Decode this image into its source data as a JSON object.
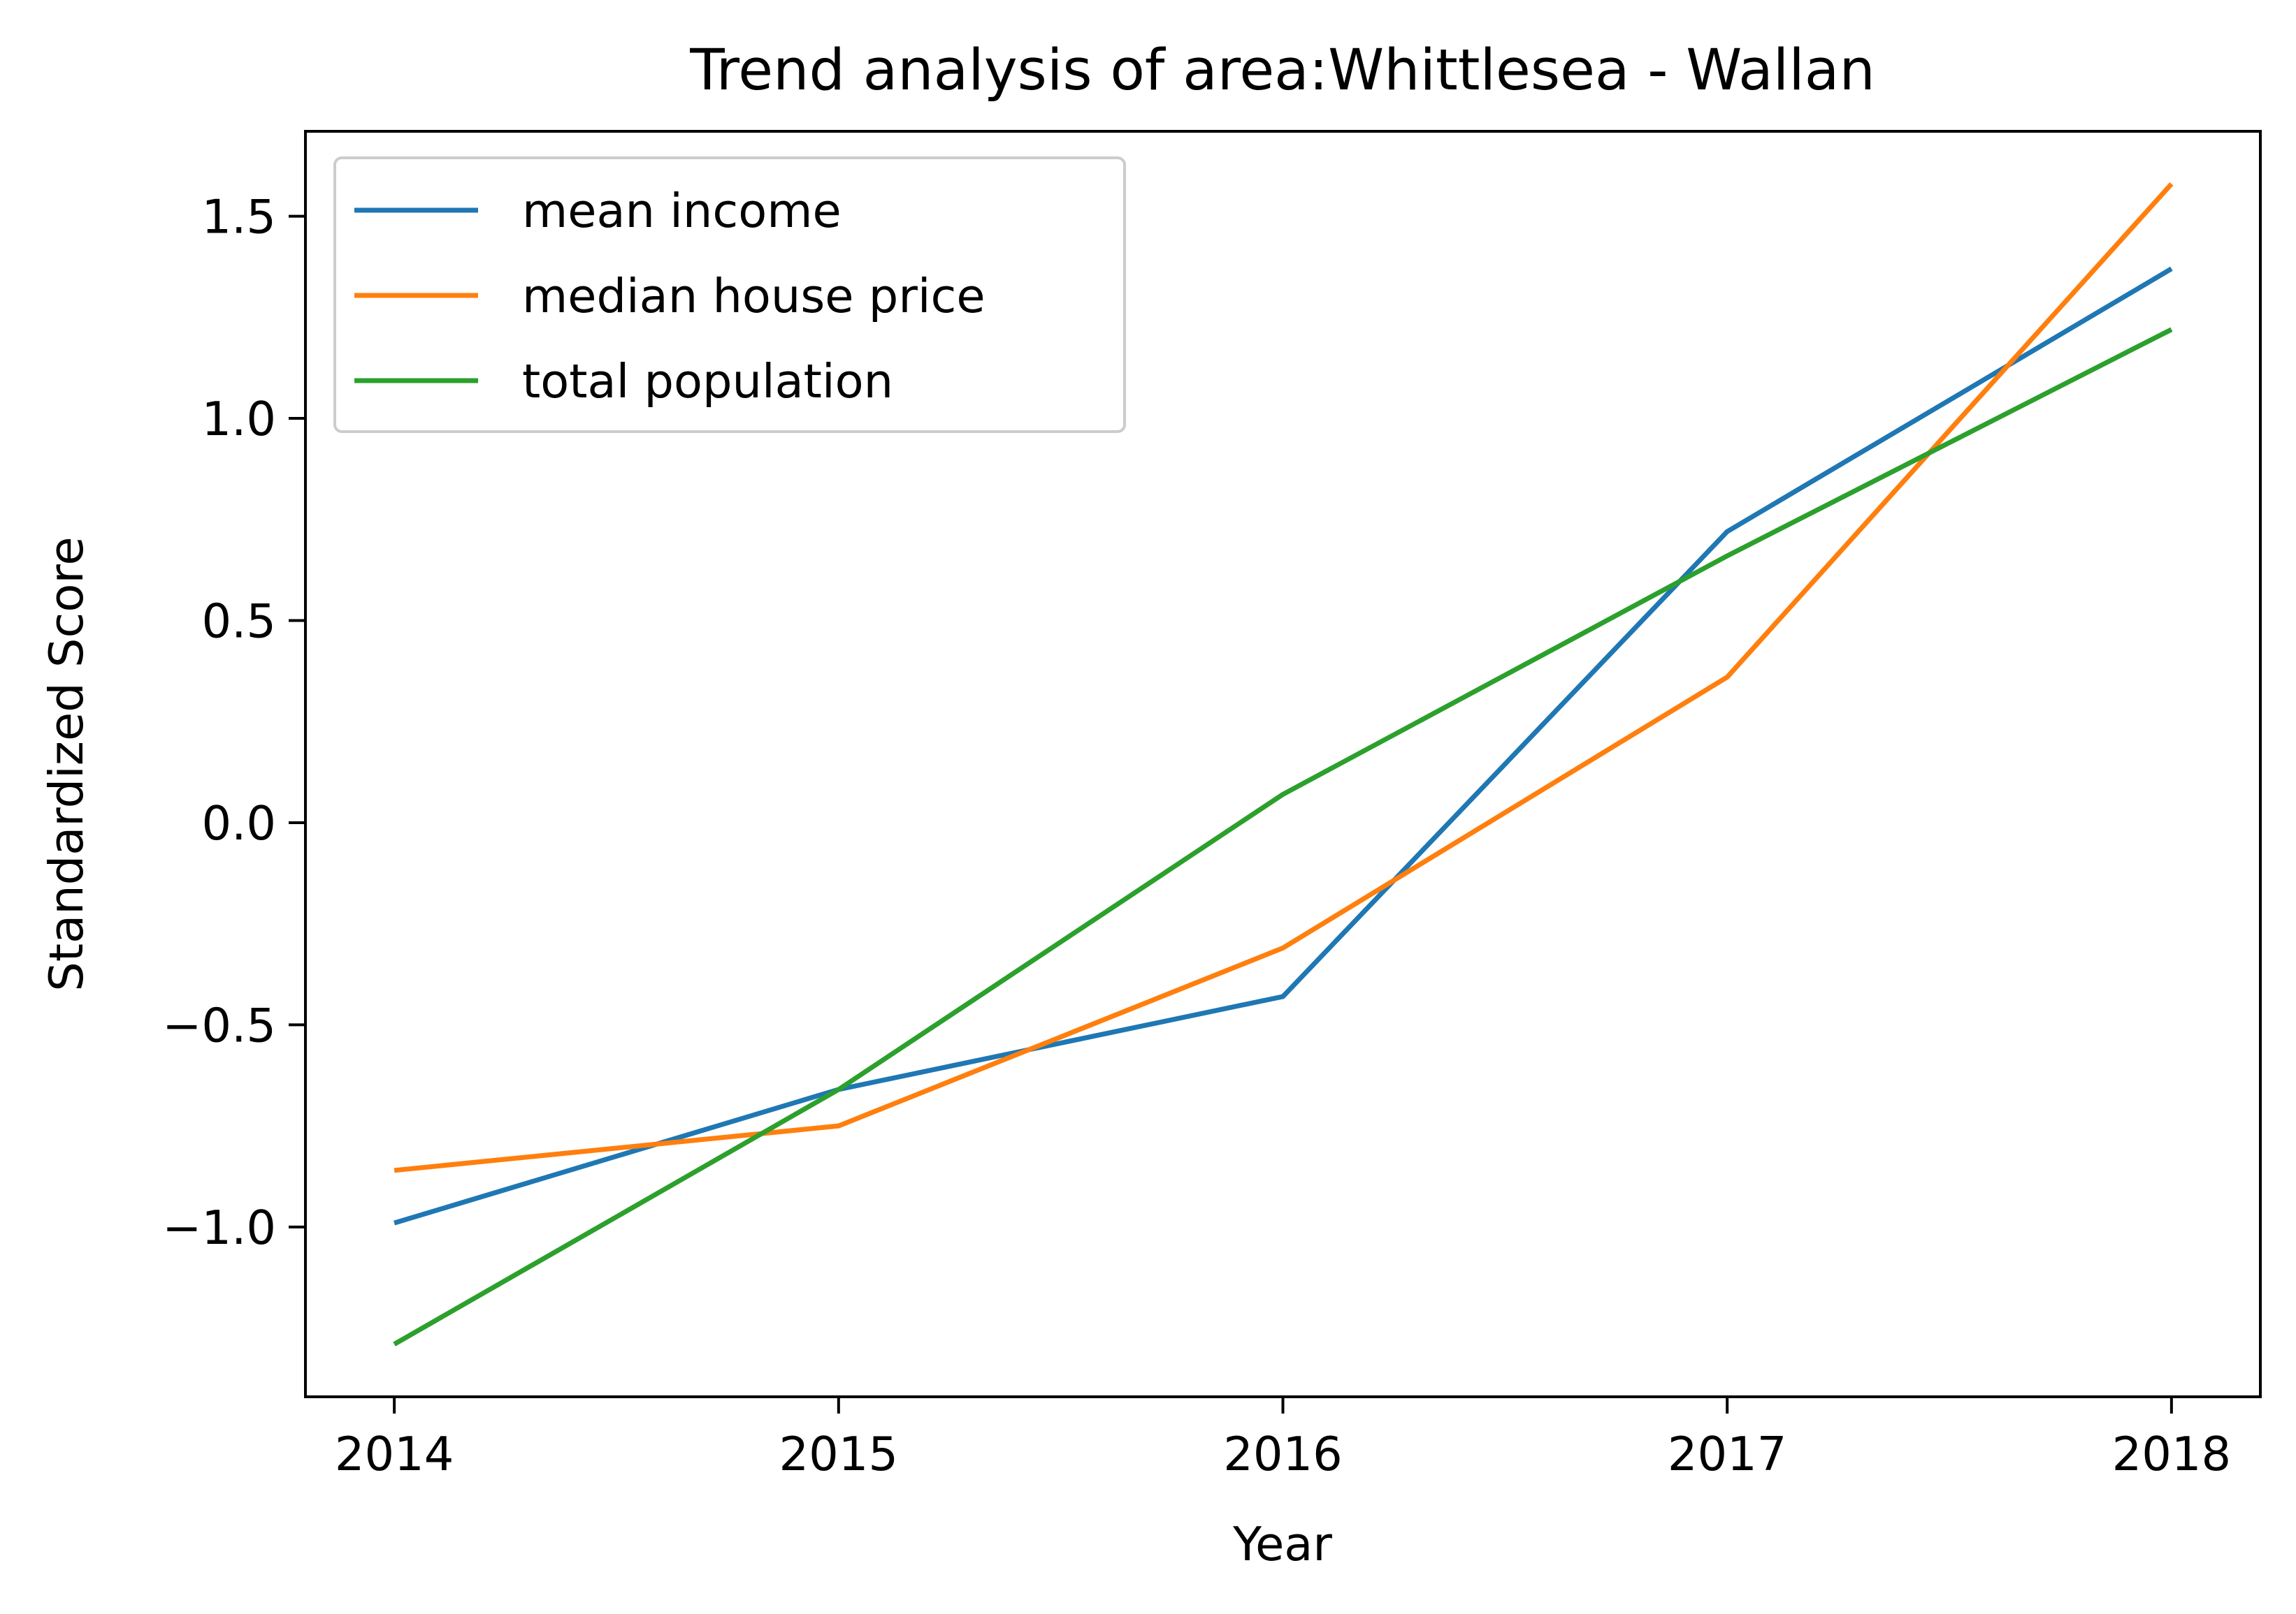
{
  "chart_data": {
    "type": "line",
    "title": "Trend analysis of area:Whittlesea - Wallan",
    "xlabel": "Year",
    "ylabel": "Standardized Score",
    "x": [
      2014,
      2015,
      2016,
      2017,
      2018
    ],
    "x_tick_labels": [
      "2014",
      "2015",
      "2016",
      "2017",
      "2018"
    ],
    "y_ticks": [
      -1.0,
      -0.5,
      0.0,
      0.5,
      1.0,
      1.5
    ],
    "y_tick_labels": [
      "−1.0",
      "−0.5",
      "0.0",
      "0.5",
      "1.0",
      "1.5"
    ],
    "xlim": [
      2013.8,
      2018.2
    ],
    "ylim": [
      -1.42,
      1.71
    ],
    "grid": false,
    "legend_position": "top-left",
    "series": [
      {
        "name": "mean income",
        "color": "#1f77b4",
        "values": [
          -0.99,
          -0.66,
          -0.43,
          0.72,
          1.37
        ]
      },
      {
        "name": "median house price",
        "color": "#ff7f0e",
        "values": [
          -0.86,
          -0.75,
          -0.31,
          0.36,
          1.58
        ]
      },
      {
        "name": "total population",
        "color": "#2ca02c",
        "values": [
          -1.29,
          -0.66,
          0.07,
          0.66,
          1.22
        ]
      }
    ]
  }
}
